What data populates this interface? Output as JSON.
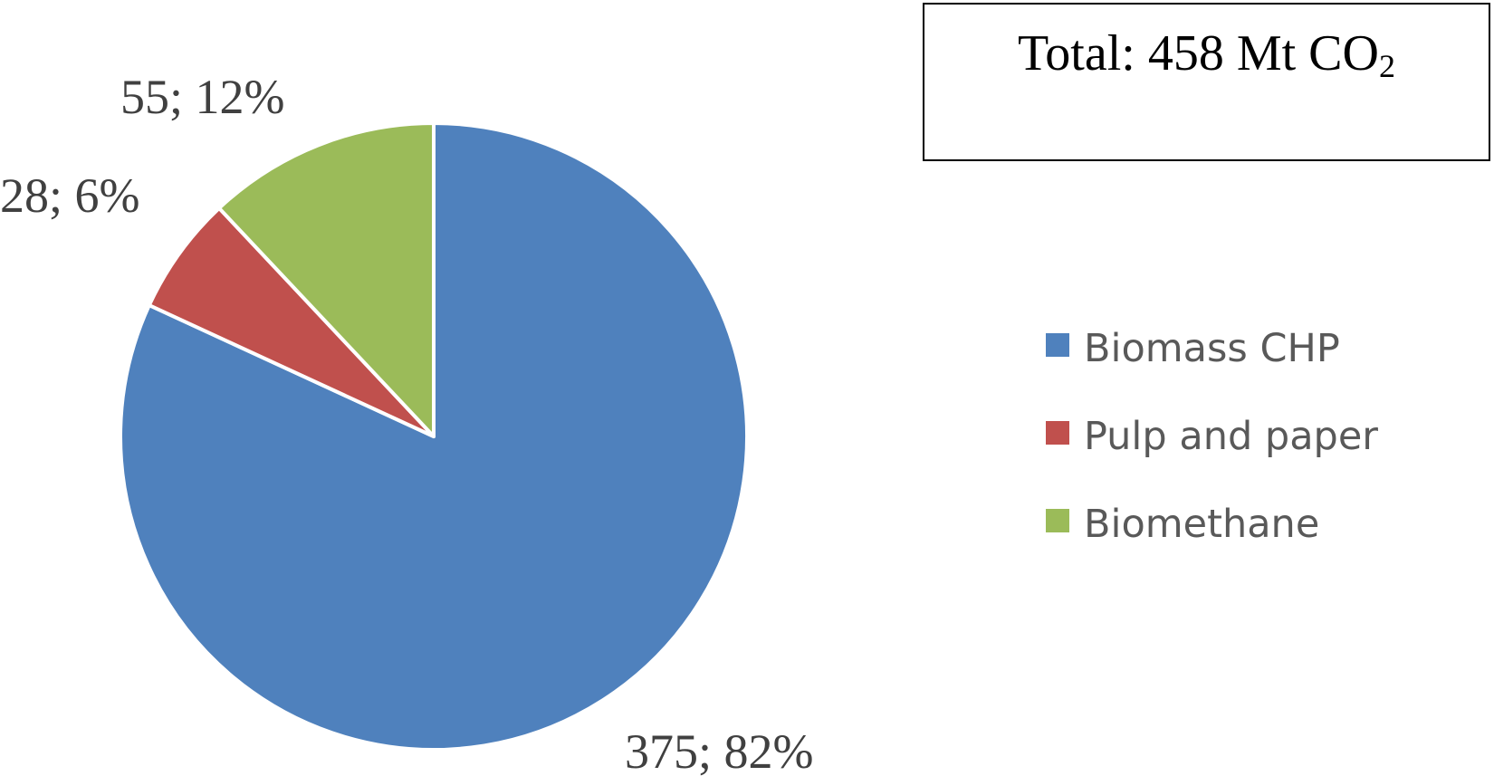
{
  "chart_data": {
    "type": "pie",
    "categories": [
      "Biomass CHP",
      "Pulp and paper",
      "Biomethane"
    ],
    "values": [
      375,
      28,
      55
    ],
    "percentages": [
      82,
      6,
      12
    ],
    "data_labels": [
      "375; 82%",
      "28; 6%",
      "55; 12%"
    ],
    "colors": [
      "#4F81BD",
      "#C0504D",
      "#9BBB59"
    ],
    "start_angle": "12 o'clock",
    "direction": "clockwise",
    "legend_position": "right",
    "annotation": {
      "prefix": "Total: 458 Mt CO",
      "subscript": "2"
    }
  }
}
